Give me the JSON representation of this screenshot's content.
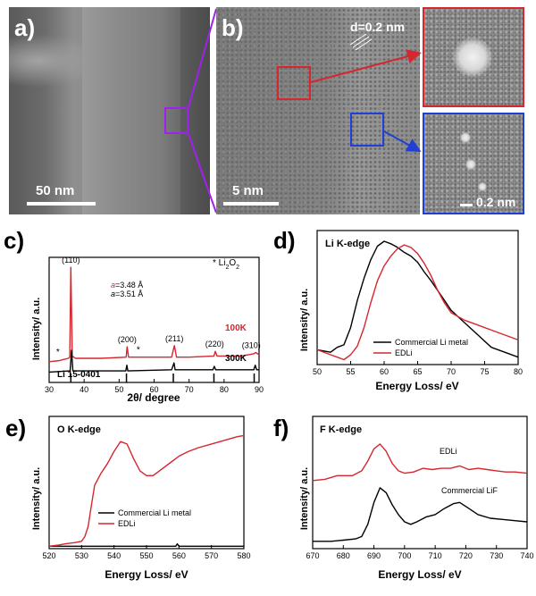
{
  "panels": {
    "a": {
      "label": "a)",
      "scale": "50 nm"
    },
    "b": {
      "label": "b)",
      "scale": "5 nm",
      "d_spacing": "d=0.2 nm"
    },
    "inset_blue": {
      "scale": "0.2 nm"
    },
    "c": {
      "label": "c)"
    },
    "d": {
      "label": "d)"
    },
    "e": {
      "label": "e)"
    },
    "f": {
      "label": "f)"
    }
  },
  "colors": {
    "red": "#d6262e",
    "blue": "#1f3fd6",
    "purple": "#a020f0",
    "black": "#000000"
  },
  "chart_data": [
    {
      "panel": "c",
      "type": "line",
      "xlabel": "2θ/ degree",
      "ylabel": "Intensity/ a.u.",
      "xlim": [
        30,
        90
      ],
      "xticks": [
        30,
        40,
        50,
        60,
        70,
        80,
        90
      ],
      "series": [
        {
          "name": "100K",
          "color": "#d6262e",
          "x": [
            30,
            33,
            34.2,
            35.5,
            35.9,
            36.2,
            36.6,
            37.5,
            45,
            52,
            52.3,
            52.7,
            56,
            60,
            65,
            65.8,
            66.4,
            70,
            77.1,
            77.5,
            78,
            85,
            88.6,
            89,
            90
          ],
          "y": [
            0.18,
            0.19,
            0.2,
            0.21,
            0.22,
            1.0,
            0.23,
            0.21,
            0.21,
            0.22,
            0.31,
            0.22,
            0.22,
            0.22,
            0.22,
            0.32,
            0.22,
            0.22,
            0.23,
            0.27,
            0.23,
            0.23,
            0.25,
            0.26,
            0.24
          ]
        },
        {
          "name": "300K",
          "color": "#000000",
          "x": [
            30,
            36,
            36.4,
            36.8,
            45,
            51.9,
            52.2,
            52.5,
            65,
            65.7,
            66,
            76.8,
            77.2,
            77.6,
            88.5,
            88.9,
            89.3,
            90
          ],
          "y": [
            0.09,
            0.1,
            0.28,
            0.1,
            0.1,
            0.1,
            0.15,
            0.1,
            0.11,
            0.17,
            0.11,
            0.11,
            0.14,
            0.11,
            0.11,
            0.15,
            0.11,
            0.11
          ]
        }
      ],
      "reference": {
        "name": "Li 15-0401",
        "positions": [
          36.2,
          52.1,
          65.5,
          77.1,
          88.6
        ]
      },
      "peak_labels": [
        "(110)",
        "(200)",
        "(211)",
        "(220)",
        "(310)"
      ],
      "lattice_red": "=3.48 Å",
      "lattice_black": "=3.51 Å",
      "lattice_symbol": "a",
      "legend_marker": "* Li",
      "legend_formula_sub": "2",
      "legend_formula_o": "O",
      "legend_formula_sub2": "2",
      "temp_red": "100K",
      "temp_black": "300K"
    },
    {
      "panel": "d",
      "type": "line",
      "title": "Li K-edge",
      "xlabel": "Energy Loss/ eV",
      "ylabel": "Intensity/ a.u.",
      "xlim": [
        50,
        80
      ],
      "xticks": [
        50,
        55,
        60,
        65,
        70,
        75,
        80
      ],
      "series": [
        {
          "name": "Commercial Li metal",
          "color": "#000000",
          "x": [
            50,
            52,
            53,
            54,
            55,
            56,
            57,
            58,
            59,
            60,
            61,
            62,
            63,
            64,
            65,
            66,
            67,
            68,
            69,
            70,
            72,
            74,
            76,
            78,
            80
          ],
          "y": [
            0.12,
            0.1,
            0.14,
            0.16,
            0.3,
            0.52,
            0.7,
            0.85,
            0.96,
            1.0,
            0.98,
            0.95,
            0.91,
            0.88,
            0.83,
            0.75,
            0.68,
            0.6,
            0.52,
            0.44,
            0.34,
            0.24,
            0.14,
            0.1,
            0.06
          ]
        },
        {
          "name": "EDLi",
          "color": "#d6262e",
          "x": [
            50,
            52,
            53,
            54,
            55,
            56,
            57,
            58,
            59,
            60,
            61,
            62,
            63,
            64,
            65,
            66,
            67,
            68,
            69,
            70,
            72,
            74,
            76,
            78,
            80
          ],
          "y": [
            0.12,
            0.08,
            0.06,
            0.04,
            0.08,
            0.15,
            0.3,
            0.5,
            0.68,
            0.8,
            0.88,
            0.94,
            0.97,
            0.95,
            0.9,
            0.82,
            0.72,
            0.6,
            0.5,
            0.42,
            0.36,
            0.32,
            0.28,
            0.24,
            0.2
          ]
        }
      ]
    },
    {
      "panel": "e",
      "type": "line",
      "title": "O K-edge",
      "xlabel": "Energy Loss/ eV",
      "ylabel": "Intensity/ a.u.",
      "xlim": [
        520,
        580
      ],
      "xticks": [
        520,
        530,
        540,
        550,
        560,
        570,
        580
      ],
      "series": [
        {
          "name": "Commercial Li metal",
          "color": "#000000",
          "x": [
            520,
            530,
            540,
            550,
            559,
            559.5,
            560,
            570,
            580
          ],
          "y": [
            0.02,
            0.02,
            0.02,
            0.02,
            0.02,
            0.04,
            0.02,
            0.02,
            0.02
          ]
        },
        {
          "name": "EDLi",
          "color": "#d6262e",
          "x": [
            520,
            523,
            525,
            528,
            530,
            531,
            532,
            533,
            534,
            536,
            538,
            540,
            542,
            544,
            546,
            548,
            550,
            552,
            554,
            556,
            558,
            560,
            563,
            566,
            570,
            574,
            578,
            580
          ],
          "y": [
            0.02,
            0.03,
            0.04,
            0.05,
            0.06,
            0.1,
            0.18,
            0.35,
            0.52,
            0.62,
            0.7,
            0.8,
            0.88,
            0.86,
            0.74,
            0.64,
            0.6,
            0.6,
            0.64,
            0.68,
            0.72,
            0.76,
            0.8,
            0.83,
            0.86,
            0.89,
            0.92,
            0.93
          ]
        }
      ]
    },
    {
      "panel": "f",
      "type": "line",
      "title": "F K-edge",
      "xlabel": "Energy Loss/ eV",
      "ylabel": "Intensity/ a.u.",
      "xlim": [
        670,
        740
      ],
      "xticks": [
        670,
        680,
        690,
        700,
        710,
        720,
        730,
        740
      ],
      "series": [
        {
          "name": "EDLi",
          "color": "#d6262e",
          "x": [
            670,
            674,
            678,
            680,
            683,
            686,
            688,
            690,
            692,
            694,
            696,
            698,
            700,
            703,
            706,
            709,
            712,
            715,
            718,
            721,
            724,
            727,
            730,
            733,
            736,
            740
          ],
          "y": [
            0.56,
            0.57,
            0.6,
            0.6,
            0.6,
            0.64,
            0.72,
            0.82,
            0.86,
            0.8,
            0.7,
            0.64,
            0.62,
            0.63,
            0.66,
            0.65,
            0.66,
            0.66,
            0.68,
            0.65,
            0.66,
            0.65,
            0.64,
            0.63,
            0.63,
            0.62
          ]
        },
        {
          "name": "Commercial LiF",
          "color": "#000000",
          "x": [
            670,
            676,
            680,
            684,
            686,
            688,
            690,
            692,
            694,
            696,
            698,
            700,
            702,
            704,
            707,
            710,
            713,
            716,
            718,
            721,
            724,
            728,
            732,
            736,
            740
          ],
          "y": [
            0.06,
            0.06,
            0.07,
            0.08,
            0.1,
            0.2,
            0.38,
            0.5,
            0.46,
            0.36,
            0.28,
            0.22,
            0.2,
            0.22,
            0.26,
            0.28,
            0.33,
            0.37,
            0.38,
            0.33,
            0.28,
            0.25,
            0.24,
            0.23,
            0.22
          ]
        }
      ]
    }
  ]
}
